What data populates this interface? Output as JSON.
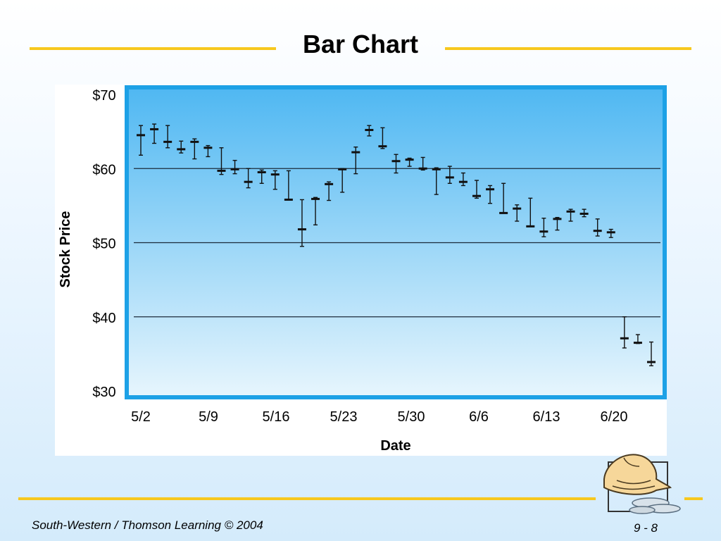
{
  "slide": {
    "title": "Bar Chart",
    "footer_left": "South-Western / Thomson Learning © 2004",
    "footer_right": "9 - 8"
  },
  "colors": {
    "accent_rule": "#f7c81e",
    "plot_top": "#50b8f2",
    "plot_bottom": "#e6f5fd",
    "plot_border": "#1da1e6"
  },
  "clipart_icon": "hand-with-coins-icon",
  "chart_data": {
    "type": "bar",
    "subtype": "high-low-close",
    "title": "",
    "xlabel": "Date",
    "ylabel": "Stock Price",
    "ylim": [
      30,
      70
    ],
    "yticks": [
      30,
      40,
      50,
      60,
      70
    ],
    "ytick_labels": [
      "$30",
      "$40",
      "$50",
      "$60",
      "$70"
    ],
    "xtick_labels": [
      "5/2",
      "5/9",
      "5/16",
      "5/23",
      "5/30",
      "6/6",
      "6/13",
      "6/20"
    ],
    "grid": "horizontal at $40, $50, $60",
    "legend": "none",
    "trading_days": [
      {
        "high": 65.8,
        "low": 61.8,
        "close": 64.5
      },
      {
        "high": 66.0,
        "low": 63.4,
        "close": 65.3
      },
      {
        "high": 65.8,
        "low": 62.8,
        "close": 63.6
      },
      {
        "high": 63.7,
        "low": 62.1,
        "close": 62.6
      },
      {
        "high": 64.0,
        "low": 61.3,
        "close": 63.6
      },
      {
        "high": 63.1,
        "low": 61.6,
        "close": 62.8
      },
      {
        "high": 62.8,
        "low": 59.2,
        "close": 59.7
      },
      {
        "high": 61.1,
        "low": 59.3,
        "close": 59.9
      },
      {
        "high": 60.0,
        "low": 57.4,
        "close": 58.2
      },
      {
        "high": 59.8,
        "low": 58.0,
        "close": 59.5
      },
      {
        "high": 59.7,
        "low": 57.2,
        "close": 59.2
      },
      {
        "high": 59.7,
        "low": 55.8,
        "close": 55.8
      },
      {
        "high": 55.8,
        "low": 49.5,
        "close": 51.8
      },
      {
        "high": 56.1,
        "low": 52.4,
        "close": 55.9
      },
      {
        "high": 58.2,
        "low": 55.7,
        "close": 57.9
      },
      {
        "high": 60.0,
        "low": 56.8,
        "close": 59.9
      },
      {
        "high": 62.9,
        "low": 59.3,
        "close": 62.2
      },
      {
        "high": 65.8,
        "low": 64.4,
        "close": 65.2
      },
      {
        "high": 65.5,
        "low": 62.7,
        "close": 63.0
      },
      {
        "high": 61.9,
        "low": 59.4,
        "close": 61.0
      },
      {
        "high": 61.4,
        "low": 60.3,
        "close": 61.2
      },
      {
        "high": 61.5,
        "low": 59.8,
        "close": 60.0
      },
      {
        "high": 60.1,
        "low": 56.5,
        "close": 59.9
      },
      {
        "high": 60.3,
        "low": 58.0,
        "close": 58.8
      },
      {
        "high": 59.4,
        "low": 57.7,
        "close": 58.2
      },
      {
        "high": 58.4,
        "low": 56.0,
        "close": 56.3
      },
      {
        "high": 57.7,
        "low": 55.3,
        "close": 57.2
      },
      {
        "high": 58.0,
        "low": 54.0,
        "close": 54.0
      },
      {
        "high": 55.1,
        "low": 52.9,
        "close": 54.6
      },
      {
        "high": 56.0,
        "low": 52.2,
        "close": 52.2
      },
      {
        "high": 53.3,
        "low": 50.8,
        "close": 51.5
      },
      {
        "high": 53.4,
        "low": 51.7,
        "close": 53.2
      },
      {
        "high": 54.5,
        "low": 52.9,
        "close": 54.2
      },
      {
        "high": 54.5,
        "low": 53.5,
        "close": 53.9
      },
      {
        "high": 53.2,
        "low": 50.9,
        "close": 51.6
      },
      {
        "high": 51.8,
        "low": 50.7,
        "close": 51.4
      },
      {
        "high": 40.0,
        "low": 35.8,
        "close": 37.1
      },
      {
        "high": 37.6,
        "low": 36.4,
        "close": 36.5
      },
      {
        "high": 36.6,
        "low": 33.4,
        "close": 33.9
      }
    ]
  }
}
